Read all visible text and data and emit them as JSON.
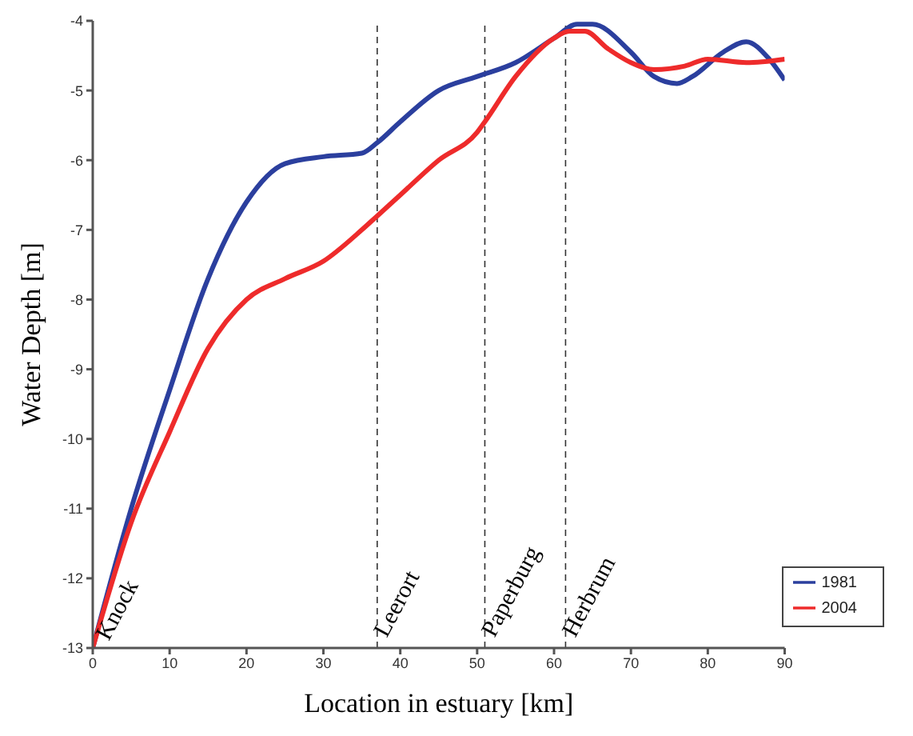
{
  "chart_data": {
    "type": "line",
    "xlabel": "Location in estuary [km]",
    "ylabel": "Water Depth [m]",
    "xlim": [
      0,
      90
    ],
    "xticks": [
      0,
      10,
      20,
      30,
      40,
      50,
      60,
      70,
      80,
      90
    ],
    "ylim": [
      -13,
      -4
    ],
    "yticks": [
      -13,
      -12,
      -11,
      -10,
      -9,
      -8,
      -7,
      -6,
      -5,
      -4
    ],
    "grid": false,
    "legend": "bottom right",
    "marker": "none",
    "line_style": "solid",
    "series": [
      {
        "name": "1981",
        "color": "#2b3f9e",
        "x": [
          0,
          5,
          10,
          15,
          20,
          25,
          30,
          35,
          37,
          40,
          45,
          50,
          55,
          60,
          63,
          65,
          70,
          73,
          76,
          78,
          82,
          85,
          88,
          90
        ],
        "values": [
          -13,
          -11,
          -9.3,
          -7.7,
          -6.6,
          -6.05,
          -5.95,
          -5.9,
          -5.75,
          -5.45,
          -5.0,
          -4.8,
          -4.6,
          -4.25,
          -4.05,
          -4.05,
          -4.45,
          -4.8,
          -4.9,
          -4.8,
          -4.45,
          -4.3,
          -4.55,
          -4.85
        ]
      },
      {
        "name": "2004",
        "color": "#ee2b2b",
        "x": [
          0,
          5,
          10,
          15,
          20,
          25,
          30,
          35,
          37,
          40,
          45,
          50,
          51,
          55,
          60,
          62,
          64,
          67,
          70,
          73,
          77,
          80,
          85,
          90
        ],
        "values": [
          -13,
          -11.2,
          -9.9,
          -8.7,
          -8.0,
          -7.7,
          -7.45,
          -7.0,
          -6.8,
          -6.5,
          -6.0,
          -5.6,
          -5.45,
          -4.8,
          -4.25,
          -4.15,
          -4.15,
          -4.4,
          -4.6,
          -4.7,
          -4.65,
          -4.55,
          -4.6,
          -4.55
        ]
      }
    ],
    "ref_lines": [
      {
        "axis": "x",
        "value": 37,
        "label": "Leerort",
        "color": "#333333",
        "line_style": "dashed"
      },
      {
        "axis": "x",
        "value": 51,
        "label": "Paperburg",
        "color": "#333333",
        "line_style": "dashed"
      },
      {
        "axis": "x",
        "value": 61.5,
        "label": "Herbrum",
        "color": "#333333",
        "line_style": "dashed"
      }
    ],
    "annotations": [
      {
        "text": "Knock",
        "x": 0,
        "y": -13
      }
    ]
  }
}
